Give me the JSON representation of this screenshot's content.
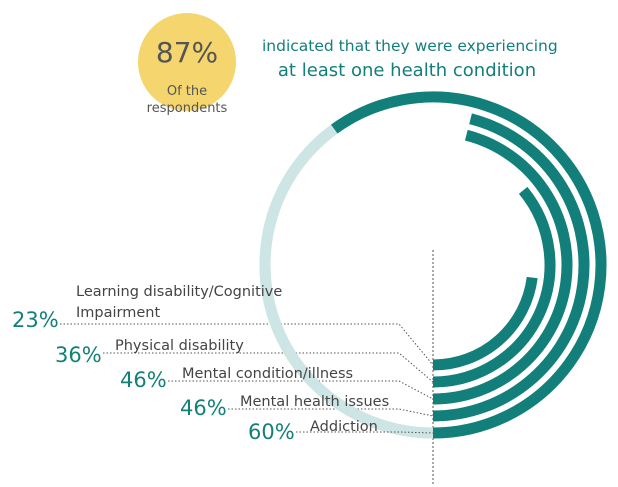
{
  "callout": {
    "value": "87%",
    "lines": [
      "Of the",
      "respondents"
    ]
  },
  "chart_data": {
    "type": "radial_bar",
    "title": [
      "indicated that they were experiencing",
      "at least one health condition"
    ],
    "categories": [
      "Learning disability/Cognitive Impairment",
      "Physical disability",
      "Mental condition/illness",
      "Mental health issues",
      "Addiction"
    ],
    "values": [
      23,
      36,
      46,
      46,
      60
    ],
    "value_labels": [
      "23%",
      "36%",
      "46%",
      "46%",
      "60%"
    ],
    "color": "#137f7a",
    "track_color": "#cde5e4"
  }
}
